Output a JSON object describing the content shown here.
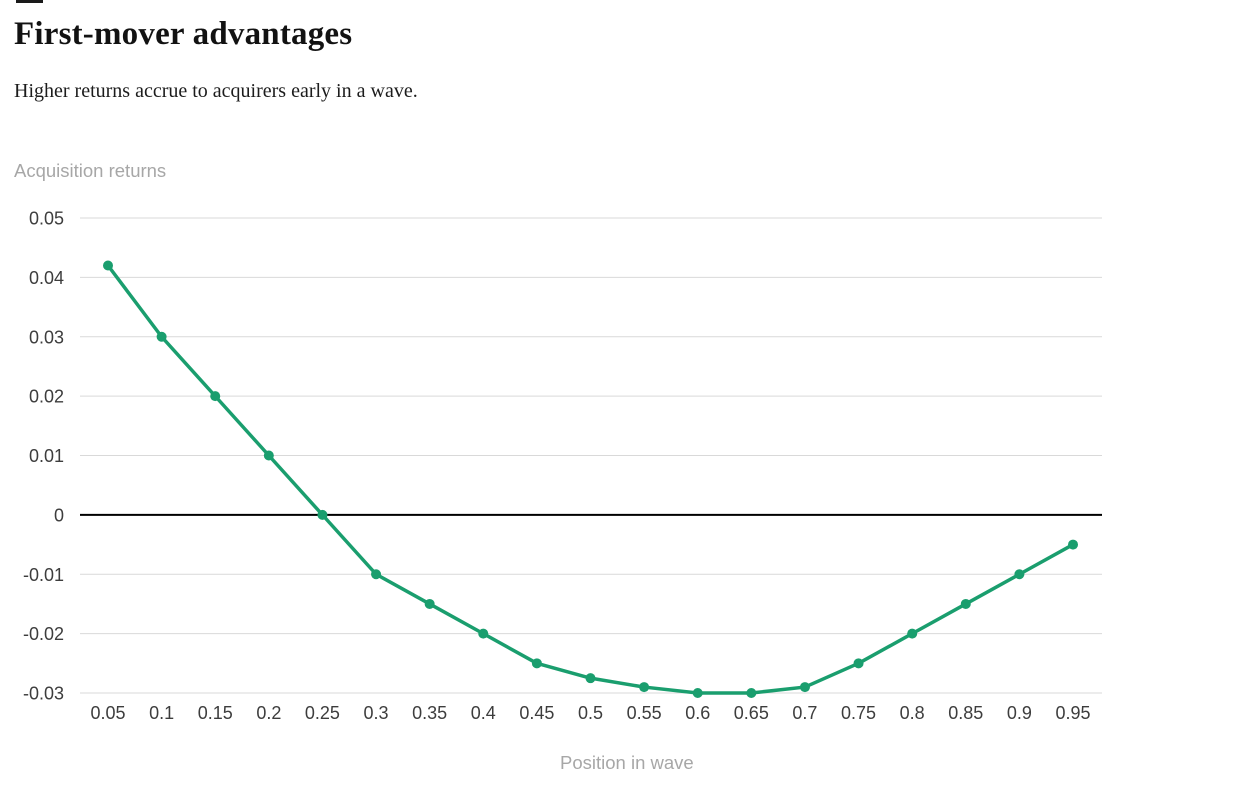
{
  "page": {
    "title": "First-mover advantages",
    "subtitle": "Higher returns accrue to acquirers early in a wave."
  },
  "chart_data": {
    "type": "line",
    "title": "First-mover advantages",
    "subtitle": "Higher returns accrue to acquirers early in a wave.",
    "xlabel": "Position in wave",
    "ylabel": "Acquisition returns",
    "series": [
      {
        "name": "Acquisition returns",
        "x": [
          0.05,
          0.1,
          0.15,
          0.2,
          0.25,
          0.3,
          0.35,
          0.4,
          0.45,
          0.5,
          0.55,
          0.6,
          0.65,
          0.7,
          0.75,
          0.8,
          0.85,
          0.9,
          0.95
        ],
        "y": [
          0.042,
          0.03,
          0.02,
          0.01,
          0.0,
          -0.01,
          -0.015,
          -0.02,
          -0.025,
          -0.0275,
          -0.029,
          -0.03,
          -0.03,
          -0.029,
          -0.025,
          -0.02,
          -0.015,
          -0.01,
          -0.005
        ]
      }
    ],
    "x_tick_labels": [
      "0.05",
      "0.1",
      "0.15",
      "0.2",
      "0.25",
      "0.3",
      "0.35",
      "0.4",
      "0.45",
      "0.5",
      "0.55",
      "0.6",
      "0.65",
      "0.7",
      "0.75",
      "0.8",
      "0.85",
      "0.9",
      "0.95"
    ],
    "y_ticks": [
      {
        "value": 0.05,
        "label": "0.05"
      },
      {
        "value": 0.04,
        "label": "0.04"
      },
      {
        "value": 0.03,
        "label": "0.03"
      },
      {
        "value": 0.02,
        "label": "0.02"
      },
      {
        "value": 0.01,
        "label": "0.01"
      },
      {
        "value": 0,
        "label": "0"
      },
      {
        "value": -0.01,
        "label": "-0.01"
      },
      {
        "value": -0.02,
        "label": "-0.02"
      },
      {
        "value": -0.03,
        "label": "-0.03"
      }
    ],
    "ylim": [
      -0.03,
      0.05
    ],
    "xlim": [
      0,
      1
    ],
    "grid": true,
    "zero_line": true,
    "legend": "none",
    "marker": "circle",
    "colors": {
      "line": "#1A9E6E",
      "grid": "#D9D9D9",
      "zero_line": "#000000",
      "tick_text": "#3D3D3D",
      "axis_title_text": "#A7A7A7"
    }
  }
}
